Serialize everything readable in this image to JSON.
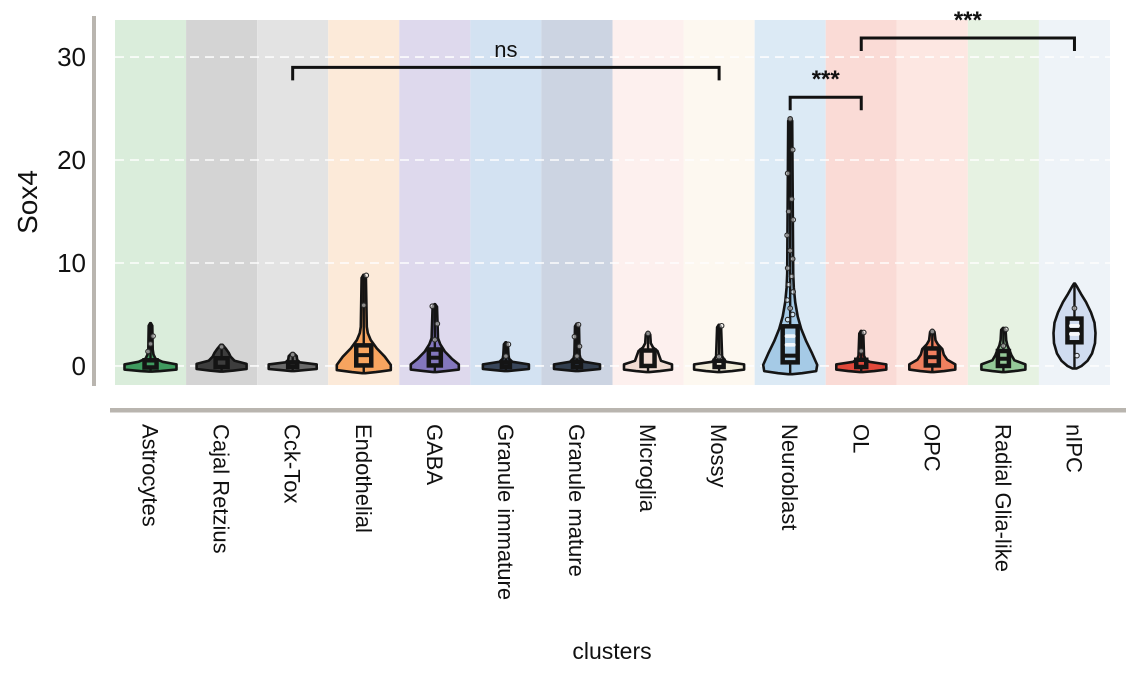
{
  "axes": {
    "y_label": "Sox4",
    "x_label": "clusters"
  },
  "chart_data": {
    "type": "violin",
    "title": "",
    "xlabel": "clusters",
    "ylabel": "Sox4",
    "ylim": [
      -1.85,
      33.6
    ],
    "yticks": [
      0,
      10,
      20,
      30
    ],
    "grid": "dashed-horizontal",
    "legend": "none",
    "outline_color": "#141414",
    "axis_line_color": "#b9b5af",
    "grid_color": "#ffffff",
    "categories": [
      "Astrocytes",
      "Cajal Retzius",
      "Cck-Tox",
      "Endothelial",
      "GABA",
      "Granule immature",
      "Granule mature",
      "Microglia",
      "Mossy",
      "Neuroblast",
      "OL",
      "OPC",
      "Radial Glia-like",
      "nIPC"
    ],
    "violins": [
      {
        "name": "Astrocytes",
        "band_color": "#daeddb",
        "color": "#3f9b5f",
        "max": 4.15,
        "shape": [
          [
            -0.55,
            1.5
          ],
          [
            -0.5,
            10
          ],
          [
            -0.35,
            26
          ],
          [
            0.15,
            26
          ],
          [
            0.4,
            12
          ],
          [
            0.7,
            5
          ],
          [
            1.1,
            3
          ],
          [
            1.6,
            2.2
          ],
          [
            3.9,
            1.8
          ],
          [
            4.15,
            0.4
          ]
        ],
        "box": {
          "q1": -0.15,
          "q3": 0.55,
          "width": 12
        },
        "dashes": [],
        "points": [
          2.15,
          2.9,
          1.4
        ]
      },
      {
        "name": "Cajal Retzius",
        "band_color": "#d4d4d4",
        "color": "#3d3d3d",
        "max": 2.05,
        "shape": [
          [
            -0.55,
            1.5
          ],
          [
            -0.45,
            12
          ],
          [
            -0.3,
            25
          ],
          [
            0.2,
            25
          ],
          [
            0.5,
            13
          ],
          [
            0.9,
            9
          ],
          [
            1.3,
            7
          ],
          [
            1.7,
            4
          ],
          [
            2.05,
            1
          ]
        ],
        "box": {
          "q1": -0.1,
          "q3": 0.75,
          "width": 12
        },
        "dashes": [],
        "points": [
          1.85
        ]
      },
      {
        "name": "Cck-Tox",
        "band_color": "#e3e3e3",
        "color": "#6a6a6a",
        "max": 1.25,
        "shape": [
          [
            -0.5,
            1.5
          ],
          [
            -0.4,
            12
          ],
          [
            -0.3,
            24
          ],
          [
            0.15,
            24
          ],
          [
            0.35,
            7
          ],
          [
            0.6,
            4.5
          ],
          [
            0.95,
            4
          ],
          [
            1.25,
            1
          ]
        ],
        "box": {
          "q1": -0.1,
          "q3": 0.35,
          "width": 9
        },
        "dashes": [],
        "points": [
          1.1
        ]
      },
      {
        "name": "Endothelial",
        "band_color": "#fcead9",
        "color": "#f7a45f",
        "max": 8.85,
        "shape": [
          [
            -0.7,
            1.5
          ],
          [
            -0.6,
            12
          ],
          [
            -0.4,
            27
          ],
          [
            0.1,
            27
          ],
          [
            0.9,
            21
          ],
          [
            1.7,
            13
          ],
          [
            2.5,
            7
          ],
          [
            3.2,
            4
          ],
          [
            3.8,
            3
          ],
          [
            8.55,
            2.2
          ],
          [
            8.85,
            0.4
          ]
        ],
        "box": {
          "q1": 0.05,
          "q3": 2.0,
          "median": 1.05,
          "width": 15
        },
        "dashes": [],
        "points": [
          5.9,
          8.8
        ]
      },
      {
        "name": "GABA",
        "band_color": "#ded9ed",
        "color": "#8377be",
        "max": 6.0,
        "shape": [
          [
            -0.6,
            1.5
          ],
          [
            -0.5,
            11
          ],
          [
            -0.35,
            24
          ],
          [
            0.15,
            24
          ],
          [
            0.7,
            17
          ],
          [
            1.4,
            10
          ],
          [
            2.1,
            5.5
          ],
          [
            2.7,
            3.2
          ],
          [
            5.75,
            2.2
          ],
          [
            6.0,
            0.4
          ]
        ],
        "box": {
          "q1": 0.05,
          "q3": 1.6,
          "median": 0.8,
          "width": 12
        },
        "dashes": [],
        "points": [
          2.55,
          4.1,
          5.8
        ]
      },
      {
        "name": "Granule immature",
        "band_color": "#d3e2f2",
        "color": "#39465a",
        "max": 2.3,
        "shape": [
          [
            -0.5,
            1.5
          ],
          [
            -0.4,
            12
          ],
          [
            -0.3,
            23
          ],
          [
            0.15,
            23
          ],
          [
            0.4,
            6.5
          ],
          [
            0.7,
            3.2
          ],
          [
            1.05,
            2.6
          ],
          [
            2.1,
            2
          ],
          [
            2.3,
            0.4
          ]
        ],
        "box": {
          "q1": -0.1,
          "q3": 0.35,
          "width": 8
        },
        "dashes": [],
        "points": [
          0.95,
          2.1
        ]
      },
      {
        "name": "Granule mature",
        "band_color": "#ccd4e2",
        "color": "#333f4f",
        "max": 4.1,
        "shape": [
          [
            -0.5,
            1.5
          ],
          [
            -0.4,
            12
          ],
          [
            -0.3,
            23
          ],
          [
            0.15,
            23
          ],
          [
            0.4,
            7
          ],
          [
            0.75,
            3.4
          ],
          [
            1.1,
            2.6
          ],
          [
            3.85,
            2
          ],
          [
            4.1,
            0.4
          ]
        ],
        "box": {
          "q1": -0.1,
          "q3": 0.4,
          "width": 8
        },
        "dashes": [],
        "points": [
          0.95,
          1.9,
          2.85,
          4.0
        ]
      },
      {
        "name": "Microglia",
        "band_color": "#fdf0ee",
        "color": "#f2dcd3",
        "max": 3.3,
        "shape": [
          [
            -0.6,
            1.5
          ],
          [
            -0.5,
            12
          ],
          [
            -0.35,
            24
          ],
          [
            0.15,
            24
          ],
          [
            0.5,
            13
          ],
          [
            1.45,
            9.5
          ],
          [
            1.8,
            5
          ],
          [
            2.2,
            2.8
          ],
          [
            3.05,
            2.2
          ],
          [
            3.3,
            0.4
          ]
        ],
        "box": {
          "q1": 0.0,
          "q3": 1.5,
          "width": 13
        },
        "dashes": [],
        "points": [
          3.15
        ]
      },
      {
        "name": "Mossy",
        "band_color": "#fdf8f0",
        "color": "#f3edda",
        "max": 4.0,
        "shape": [
          [
            -0.6,
            1.5
          ],
          [
            -0.5,
            13
          ],
          [
            -0.35,
            25
          ],
          [
            0.15,
            25
          ],
          [
            0.4,
            7
          ],
          [
            0.65,
            5
          ],
          [
            0.95,
            3
          ],
          [
            3.75,
            2
          ],
          [
            4.0,
            0.4
          ]
        ],
        "box": {
          "q1": -0.1,
          "q3": 0.5,
          "width": 9
        },
        "dashes": [],
        "points": [
          0.9,
          3.9
        ]
      },
      {
        "name": "Neuroblast",
        "band_color": "#dceaf5",
        "color": "#a5cae6",
        "max": 24.1,
        "shape": [
          [
            -0.8,
            2
          ],
          [
            -0.7,
            12
          ],
          [
            -0.5,
            26
          ],
          [
            0.1,
            27
          ],
          [
            1.2,
            22
          ],
          [
            2.4,
            16
          ],
          [
            3.6,
            11
          ],
          [
            4.8,
            7.5
          ],
          [
            6.2,
            5
          ],
          [
            7.6,
            3.6
          ],
          [
            9.0,
            3
          ],
          [
            23.8,
            2
          ],
          [
            24.1,
            0.4
          ]
        ],
        "box": {
          "q1": 0.35,
          "q3": 3.85,
          "median": 1.0,
          "width": 15
        },
        "dashes": [
          2.9,
          2.05
        ],
        "points": [
          24.0,
          21.0,
          18.7,
          16.2,
          15.0,
          14.2,
          12.7,
          11.2,
          10.4,
          9.5,
          8.7,
          7.9,
          7.2,
          6.4,
          5.6,
          5.0,
          4.5
        ]
      },
      {
        "name": "OL",
        "band_color": "#fadbd6",
        "color": "#e2493b",
        "max": 3.4,
        "shape": [
          [
            -0.6,
            1.5
          ],
          [
            -0.5,
            13
          ],
          [
            -0.35,
            25
          ],
          [
            0.15,
            25
          ],
          [
            0.4,
            8
          ],
          [
            0.7,
            4
          ],
          [
            1.0,
            2.8
          ],
          [
            3.15,
            2
          ],
          [
            3.4,
            0.4
          ]
        ],
        "box": {
          "q1": -0.1,
          "q3": 0.6,
          "width": 10
        },
        "dashes": [],
        "points": [
          1.45,
          3.25
        ]
      },
      {
        "name": "OPC",
        "band_color": "#fde7e2",
        "color": "#f0805f",
        "max": 3.5,
        "shape": [
          [
            -0.6,
            1.5
          ],
          [
            -0.5,
            12
          ],
          [
            -0.35,
            23
          ],
          [
            0.15,
            23
          ],
          [
            0.6,
            15
          ],
          [
            1.1,
            11.5
          ],
          [
            1.65,
            10
          ],
          [
            2.1,
            5.5
          ],
          [
            2.5,
            3.2
          ],
          [
            3.3,
            2.2
          ],
          [
            3.5,
            0.4
          ]
        ],
        "box": {
          "q1": 0.05,
          "q3": 1.7,
          "median": 0.85,
          "width": 13
        },
        "dashes": [],
        "points": [
          3.35
        ]
      },
      {
        "name": "Radial Glia-like",
        "band_color": "#e6f2e2",
        "color": "#95c998",
        "max": 3.7,
        "shape": [
          [
            -0.6,
            1.5
          ],
          [
            -0.5,
            11
          ],
          [
            -0.35,
            22
          ],
          [
            0.15,
            22
          ],
          [
            0.55,
            11
          ],
          [
            1.05,
            8
          ],
          [
            1.55,
            6
          ],
          [
            2.0,
            4
          ],
          [
            2.5,
            2.8
          ],
          [
            3.5,
            2.2
          ],
          [
            3.7,
            0.4
          ]
        ],
        "box": {
          "q1": 0.0,
          "q3": 1.45,
          "median": 0.7,
          "width": 11
        },
        "dashes": [],
        "points": [
          1.95,
          3.55
        ]
      },
      {
        "name": "nIPC",
        "band_color": "#eef3f8",
        "color": "#d0dcf0",
        "max": 8.0,
        "shape": [
          [
            -0.25,
            2
          ],
          [
            0.0,
            7
          ],
          [
            0.5,
            13
          ],
          [
            1.2,
            17.5
          ],
          [
            2.2,
            20.5
          ],
          [
            3.2,
            21
          ],
          [
            4.2,
            20
          ],
          [
            5.2,
            16.5
          ],
          [
            6.2,
            11.5
          ],
          [
            7.0,
            6.5
          ],
          [
            7.7,
            2.5
          ],
          [
            8.0,
            0.5
          ]
        ],
        "box": {
          "q1": 2.3,
          "q3": 4.6,
          "median": 3.5,
          "width": 14
        },
        "dashes": [
          3.9,
          3.1
        ],
        "points": [
          5.6,
          1.0
        ]
      }
    ],
    "annotations": [
      {
        "label": "ns",
        "from": "Cck-Tox",
        "to": "Mossy",
        "line_y": 29.0
      },
      {
        "label": "***",
        "from": "Neuroblast",
        "to": "OL",
        "line_y": 26.1
      },
      {
        "label": "***",
        "from": "OL",
        "to": "nIPC",
        "line_y": 31.85
      }
    ]
  }
}
